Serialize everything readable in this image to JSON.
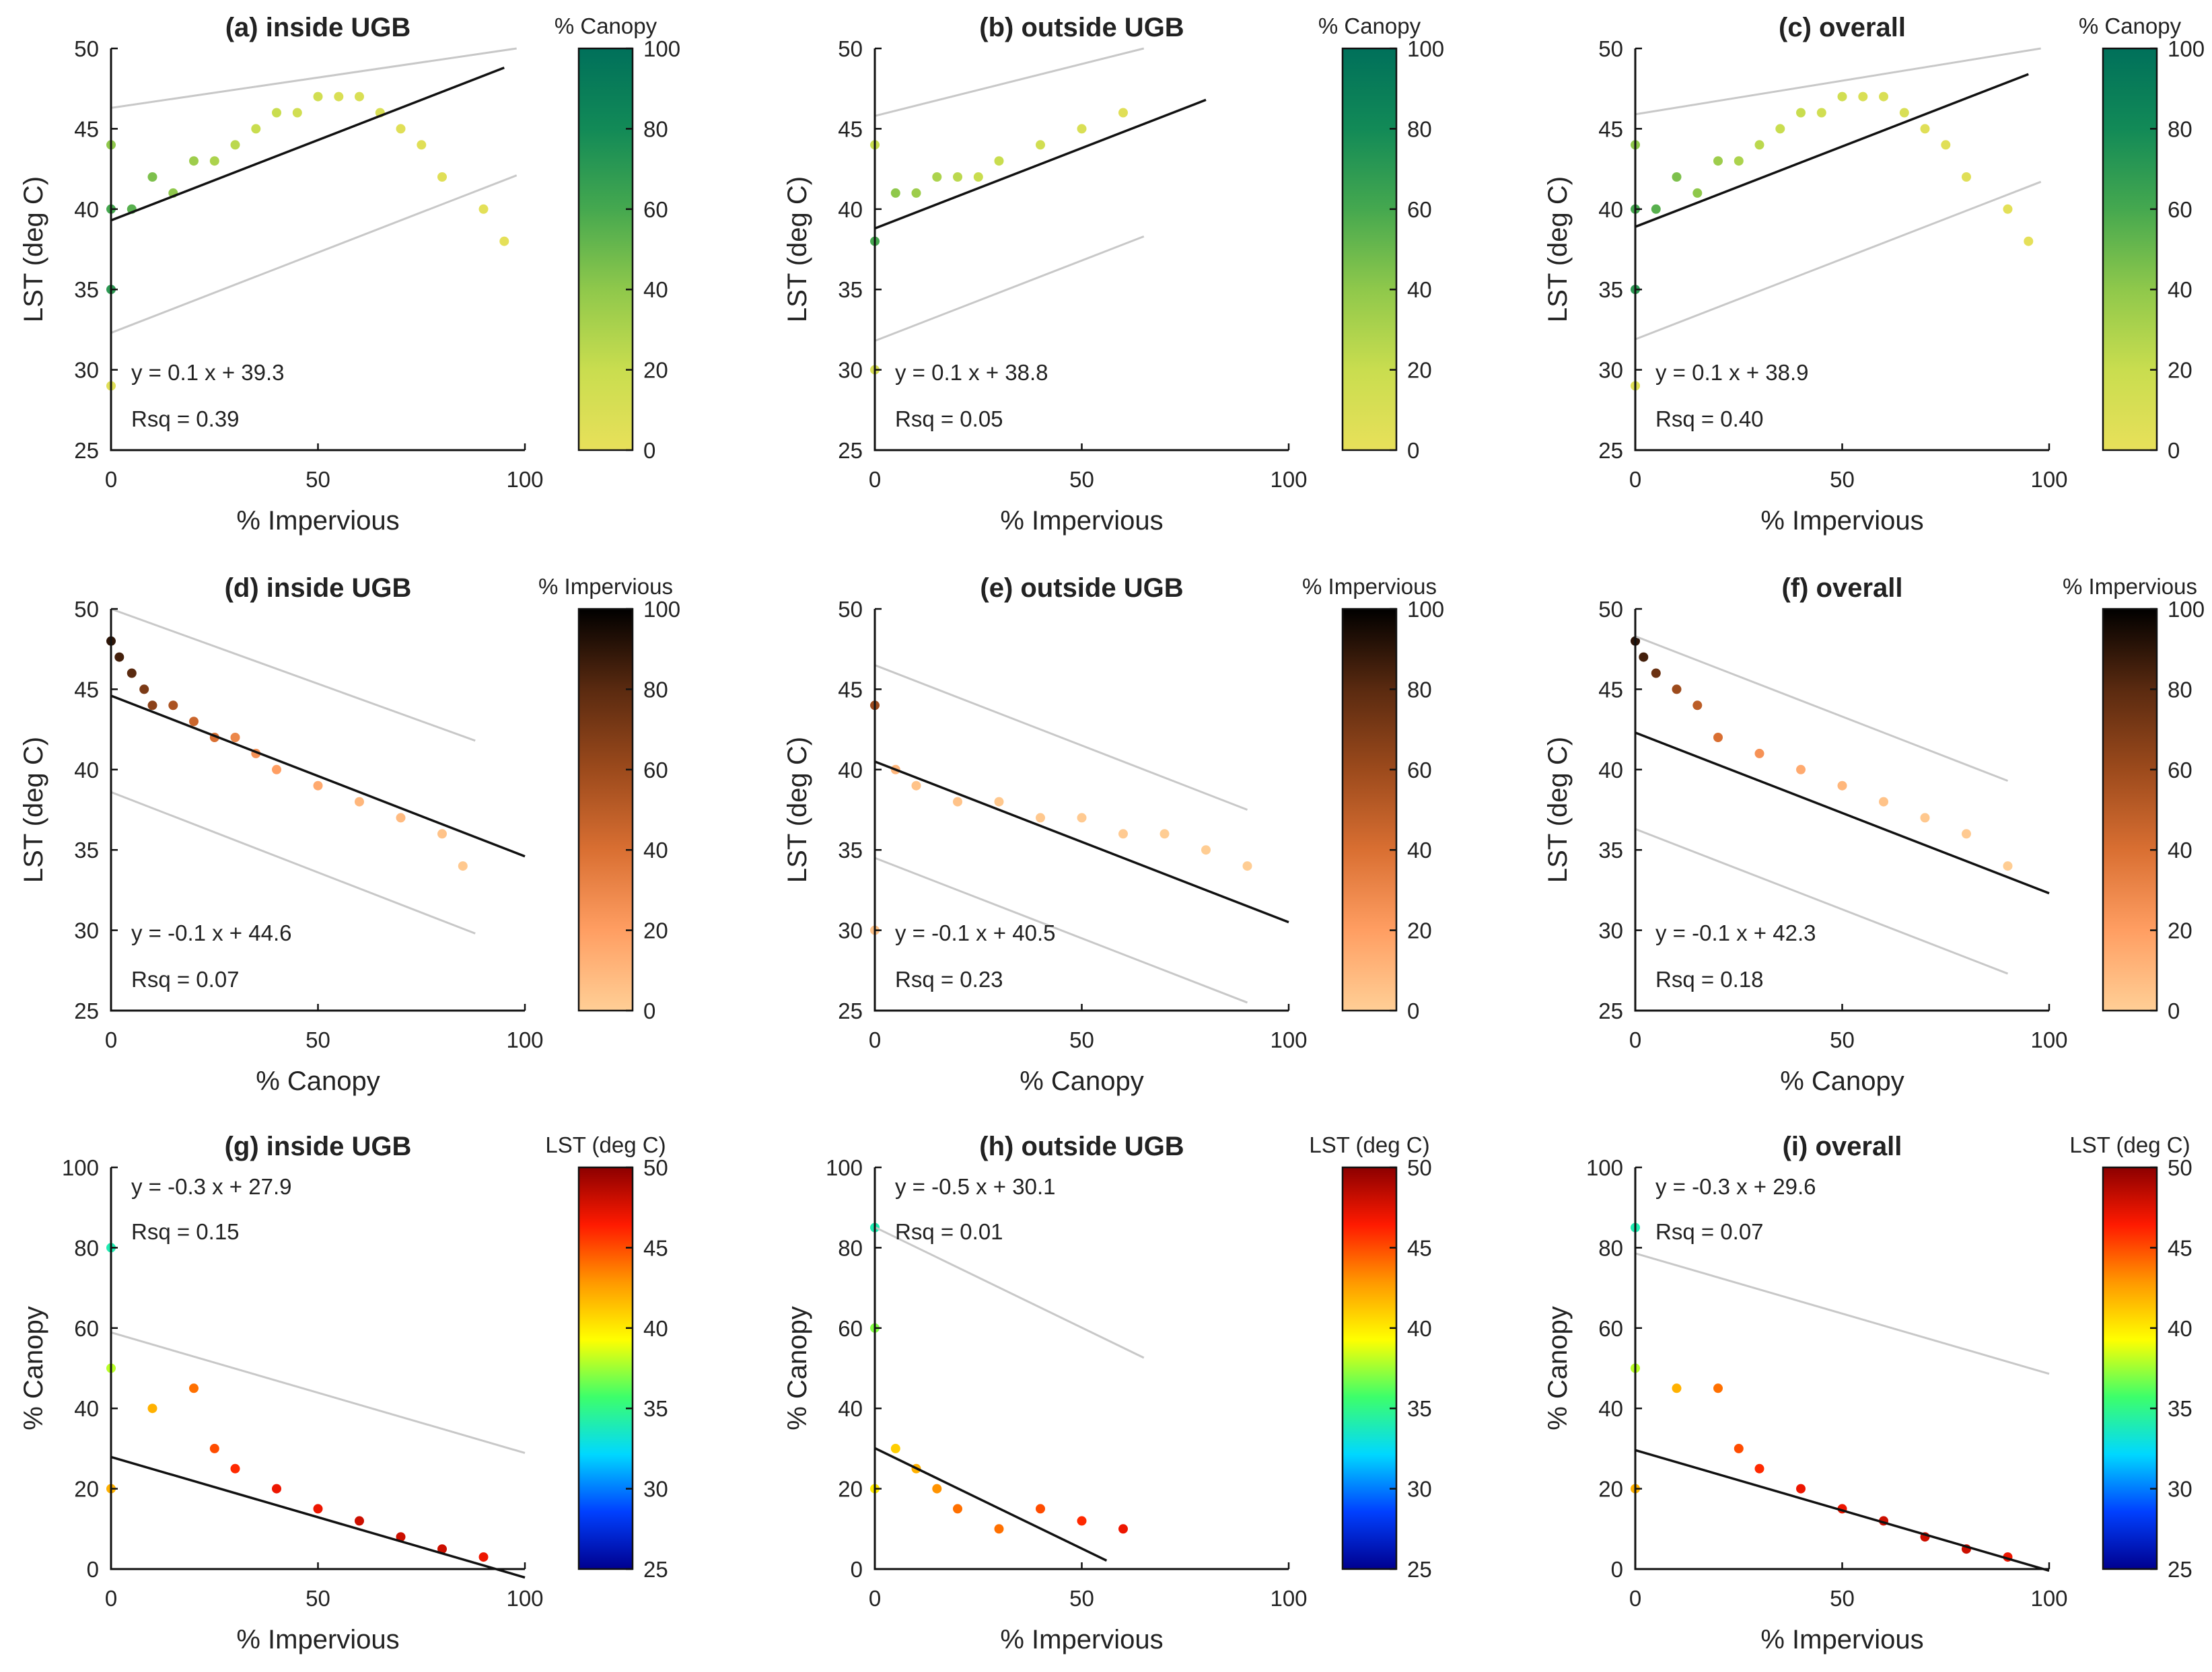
{
  "colormaps": {
    "canopy": [
      "#e8e05a",
      "#c9dd4f",
      "#8fc84b",
      "#45a84f",
      "#128a57",
      "#00705a"
    ],
    "impervious": [
      "#ffcf96",
      "#ff9e62",
      "#d96f32",
      "#9c4a1c",
      "#5a2a10",
      "#000000"
    ],
    "lst": [
      "#00008f",
      "#0040ff",
      "#00d8ff",
      "#3dff6a",
      "#ffff00",
      "#ff9800",
      "#ff1a00",
      "#8c0000"
    ]
  },
  "chart_data": [
    {
      "id": "a",
      "type": "scatter",
      "title": "(a) inside UGB",
      "xlabel": "% Impervious",
      "ylabel": "LST (deg C)",
      "xlim": [
        0,
        100
      ],
      "ylim": [
        25,
        50
      ],
      "xticks": [
        0,
        50,
        100
      ],
      "yticks": [
        25,
        30,
        35,
        40,
        45,
        50
      ],
      "colorbar": {
        "label": "% Canopy",
        "range": [
          0,
          100
        ],
        "ticks": [
          0,
          20,
          40,
          60,
          80,
          100
        ],
        "colormap": "canopy"
      },
      "fit": {
        "slope": 0.1,
        "intercept": 39.3,
        "equation": "y = 0.1 x + 39.3",
        "rsq": "Rsq = 0.39",
        "x_range": [
          0,
          95
        ],
        "band_offset": 7,
        "band_range": [
          0,
          98
        ]
      },
      "annotation_position": "bottom-left",
      "sample": {
        "x": [
          0,
          0,
          0,
          0,
          5,
          10,
          15,
          20,
          25,
          30,
          35,
          40,
          45,
          50,
          55,
          60,
          65,
          70,
          75,
          80,
          90,
          95
        ],
        "y": [
          29,
          35,
          40,
          44,
          40,
          42,
          41,
          43,
          43,
          44,
          45,
          46,
          46,
          47,
          47,
          47,
          46,
          45,
          44,
          42,
          40,
          38
        ],
        "c": [
          5,
          70,
          60,
          40,
          55,
          45,
          40,
          35,
          30,
          25,
          20,
          20,
          15,
          15,
          10,
          10,
          10,
          5,
          5,
          5,
          3,
          2
        ]
      }
    },
    {
      "id": "b",
      "type": "scatter",
      "title": "(b) outside UGB",
      "xlabel": "% Impervious",
      "ylabel": "LST (deg C)",
      "xlim": [
        0,
        100
      ],
      "ylim": [
        25,
        50
      ],
      "xticks": [
        0,
        50,
        100
      ],
      "yticks": [
        25,
        30,
        35,
        40,
        45,
        50
      ],
      "colorbar": {
        "label": "% Canopy",
        "range": [
          0,
          100
        ],
        "ticks": [
          0,
          20,
          40,
          60,
          80,
          100
        ],
        "colormap": "canopy"
      },
      "fit": {
        "slope": 0.1,
        "intercept": 38.8,
        "equation": "y = 0.1 x + 38.8",
        "rsq": "Rsq = 0.05",
        "x_range": [
          0,
          80
        ],
        "band_offset": 7,
        "band_range": [
          0,
          65
        ]
      },
      "annotation_position": "bottom-left",
      "sample": {
        "x": [
          0,
          0,
          0,
          5,
          10,
          15,
          20,
          25,
          30,
          40,
          50,
          60
        ],
        "y": [
          30,
          38,
          44,
          41,
          41,
          42,
          42,
          42,
          43,
          44,
          45,
          46
        ],
        "c": [
          10,
          60,
          20,
          40,
          35,
          30,
          25,
          20,
          20,
          15,
          10,
          5
        ]
      }
    },
    {
      "id": "c",
      "type": "scatter",
      "title": "(c) overall",
      "xlabel": "% Impervious",
      "ylabel": "LST (deg C)",
      "xlim": [
        0,
        100
      ],
      "ylim": [
        25,
        50
      ],
      "xticks": [
        0,
        50,
        100
      ],
      "yticks": [
        25,
        30,
        35,
        40,
        45,
        50
      ],
      "colorbar": {
        "label": "% Canopy",
        "range": [
          0,
          100
        ],
        "ticks": [
          0,
          20,
          40,
          60,
          80,
          100
        ],
        "colormap": "canopy"
      },
      "fit": {
        "slope": 0.1,
        "intercept": 38.9,
        "equation": "y = 0.1 x + 38.9",
        "rsq": "Rsq = 0.40",
        "x_range": [
          0,
          95
        ],
        "band_offset": 7,
        "band_range": [
          0,
          98
        ]
      },
      "annotation_position": "bottom-left",
      "sample": {
        "x": [
          0,
          0,
          0,
          0,
          5,
          10,
          15,
          20,
          25,
          30,
          35,
          40,
          45,
          50,
          55,
          60,
          65,
          70,
          75,
          80,
          90,
          95
        ],
        "y": [
          29,
          35,
          40,
          44,
          40,
          42,
          41,
          43,
          43,
          44,
          45,
          46,
          46,
          47,
          47,
          47,
          46,
          45,
          44,
          42,
          40,
          38
        ],
        "c": [
          5,
          70,
          60,
          40,
          55,
          45,
          40,
          35,
          30,
          25,
          20,
          20,
          15,
          15,
          10,
          10,
          10,
          5,
          5,
          5,
          3,
          2
        ]
      }
    },
    {
      "id": "d",
      "type": "scatter",
      "title": "(d) inside UGB",
      "xlabel": "% Canopy",
      "ylabel": "LST (deg C)",
      "xlim": [
        0,
        100
      ],
      "ylim": [
        25,
        50
      ],
      "xticks": [
        0,
        50,
        100
      ],
      "yticks": [
        25,
        30,
        35,
        40,
        45,
        50
      ],
      "colorbar": {
        "label": "% Impervious",
        "range": [
          0,
          100
        ],
        "ticks": [
          0,
          20,
          40,
          60,
          80,
          100
        ],
        "colormap": "impervious"
      },
      "fit": {
        "slope": -0.1,
        "intercept": 44.6,
        "equation": "y = -0.1 x + 44.6",
        "rsq": "Rsq = 0.07",
        "x_range": [
          0,
          100
        ],
        "band_offset": 6,
        "band_range": [
          0,
          88
        ]
      },
      "annotation_position": "bottom-left",
      "sample": {
        "x": [
          0,
          2,
          5,
          8,
          10,
          15,
          20,
          25,
          30,
          35,
          40,
          50,
          60,
          70,
          80,
          85
        ],
        "y": [
          48,
          47,
          46,
          45,
          44,
          44,
          43,
          42,
          42,
          41,
          40,
          39,
          38,
          37,
          36,
          34
        ],
        "c": [
          90,
          85,
          80,
          70,
          65,
          55,
          45,
          40,
          30,
          25,
          20,
          15,
          10,
          8,
          5,
          3
        ]
      }
    },
    {
      "id": "e",
      "type": "scatter",
      "title": "(e) outside UGB",
      "xlabel": "% Canopy",
      "ylabel": "LST (deg C)",
      "xlim": [
        0,
        100
      ],
      "ylim": [
        25,
        50
      ],
      "xticks": [
        0,
        50,
        100
      ],
      "yticks": [
        25,
        30,
        35,
        40,
        45,
        50
      ],
      "colorbar": {
        "label": "% Impervious",
        "range": [
          0,
          100
        ],
        "ticks": [
          0,
          20,
          40,
          60,
          80,
          100
        ],
        "colormap": "impervious"
      },
      "fit": {
        "slope": -0.1,
        "intercept": 40.5,
        "equation": "y = -0.1 x + 40.5",
        "rsq": "Rsq = 0.23",
        "x_range": [
          0,
          100
        ],
        "band_offset": 6,
        "band_range": [
          0,
          90
        ]
      },
      "annotation_position": "bottom-left",
      "sample": {
        "x": [
          0,
          0,
          5,
          10,
          20,
          30,
          40,
          50,
          60,
          70,
          80,
          90
        ],
        "y": [
          30,
          44,
          40,
          39,
          38,
          38,
          37,
          37,
          36,
          36,
          35,
          34
        ],
        "c": [
          5,
          60,
          10,
          5,
          5,
          3,
          3,
          2,
          2,
          1,
          1,
          1
        ]
      }
    },
    {
      "id": "f",
      "type": "scatter",
      "title": "(f) overall",
      "xlabel": "% Canopy",
      "ylabel": "LST (deg C)",
      "xlim": [
        0,
        100
      ],
      "ylim": [
        25,
        50
      ],
      "xticks": [
        0,
        50,
        100
      ],
      "yticks": [
        25,
        30,
        35,
        40,
        45,
        50
      ],
      "colorbar": {
        "label": "% Impervious",
        "range": [
          0,
          100
        ],
        "ticks": [
          0,
          20,
          40,
          60,
          80,
          100
        ],
        "colormap": "impervious"
      },
      "fit": {
        "slope": -0.1,
        "intercept": 42.3,
        "equation": "y = -0.1 x + 42.3",
        "rsq": "Rsq = 0.18",
        "x_range": [
          0,
          100
        ],
        "band_offset": 6,
        "band_range": [
          0,
          90
        ]
      },
      "annotation_position": "bottom-left",
      "sample": {
        "x": [
          0,
          2,
          5,
          10,
          15,
          20,
          30,
          40,
          50,
          60,
          70,
          80,
          90
        ],
        "y": [
          48,
          47,
          46,
          45,
          44,
          42,
          41,
          40,
          39,
          38,
          37,
          36,
          34
        ],
        "c": [
          90,
          85,
          75,
          60,
          50,
          40,
          25,
          15,
          10,
          5,
          3,
          2,
          1
        ]
      }
    },
    {
      "id": "g",
      "type": "scatter",
      "title": "(g) inside UGB",
      "xlabel": "% Impervious",
      "ylabel": "% Canopy",
      "xlim": [
        0,
        100
      ],
      "ylim": [
        0,
        100
      ],
      "xticks": [
        0,
        50,
        100
      ],
      "yticks": [
        0,
        20,
        40,
        60,
        80,
        100
      ],
      "colorbar": {
        "label": "LST (deg C)",
        "range": [
          25,
          50
        ],
        "ticks": [
          25,
          30,
          35,
          40,
          45,
          50
        ],
        "colormap": "lst"
      },
      "fit": {
        "slope": -0.3,
        "intercept": 27.9,
        "equation": "y = -0.3 x + 27.9",
        "rsq": "Rsq = 0.15",
        "x_range": [
          0,
          100
        ],
        "band_offset": 31,
        "band_range": [
          0,
          100
        ]
      },
      "annotation_position": "top-left",
      "sample": {
        "x": [
          0,
          0,
          0,
          10,
          20,
          25,
          30,
          40,
          50,
          60,
          70,
          80,
          90
        ],
        "y": [
          80,
          50,
          20,
          40,
          45,
          30,
          25,
          20,
          15,
          12,
          8,
          5,
          3
        ],
        "c": [
          34,
          38,
          42,
          42,
          44,
          45,
          46,
          47,
          47,
          48,
          48,
          48,
          47
        ]
      }
    },
    {
      "id": "h",
      "type": "scatter",
      "title": "(h) outside UGB",
      "xlabel": "% Impervious",
      "ylabel": "% Canopy",
      "xlim": [
        0,
        100
      ],
      "ylim": [
        0,
        100
      ],
      "xticks": [
        0,
        50,
        100
      ],
      "yticks": [
        0,
        20,
        40,
        60,
        80,
        100
      ],
      "colorbar": {
        "label": "LST (deg C)",
        "range": [
          25,
          50
        ],
        "ticks": [
          25,
          30,
          35,
          40,
          45,
          50
        ],
        "colormap": "lst"
      },
      "fit": {
        "slope": -0.5,
        "intercept": 30.1,
        "equation": "y = -0.5 x + 30.1",
        "rsq": "Rsq = 0.01",
        "x_range": [
          0,
          56
        ],
        "band_offset": 55,
        "band_range": [
          0,
          65
        ]
      },
      "annotation_position": "top-left",
      "sample": {
        "x": [
          0,
          0,
          0,
          5,
          10,
          15,
          20,
          30,
          40,
          50,
          60
        ],
        "y": [
          85,
          60,
          20,
          30,
          25,
          20,
          15,
          10,
          15,
          12,
          10
        ],
        "c": [
          34,
          37,
          40,
          41,
          42,
          43,
          44,
          44,
          45,
          46,
          47
        ]
      }
    },
    {
      "id": "i",
      "type": "scatter",
      "title": "(i) overall",
      "xlabel": "% Impervious",
      "ylabel": "% Canopy",
      "xlim": [
        0,
        100
      ],
      "ylim": [
        0,
        100
      ],
      "xticks": [
        0,
        50,
        100
      ],
      "yticks": [
        0,
        20,
        40,
        60,
        80,
        100
      ],
      "colorbar": {
        "label": "LST (deg C)",
        "range": [
          25,
          50
        ],
        "ticks": [
          25,
          30,
          35,
          40,
          45,
          50
        ],
        "colormap": "lst"
      },
      "fit": {
        "slope": -0.3,
        "intercept": 29.6,
        "equation": "y = -0.3 x + 29.6",
        "rsq": "Rsq = 0.07",
        "x_range": [
          0,
          100
        ],
        "band_offset": 49,
        "band_range": [
          0,
          100
        ]
      },
      "annotation_position": "top-left",
      "sample": {
        "x": [
          0,
          0,
          0,
          10,
          20,
          25,
          30,
          40,
          50,
          60,
          70,
          80,
          90
        ],
        "y": [
          85,
          50,
          20,
          45,
          45,
          30,
          25,
          20,
          15,
          12,
          8,
          5,
          3
        ],
        "c": [
          34,
          38,
          42,
          42,
          44,
          45,
          46,
          47,
          47,
          48,
          48,
          48,
          47
        ]
      }
    }
  ]
}
